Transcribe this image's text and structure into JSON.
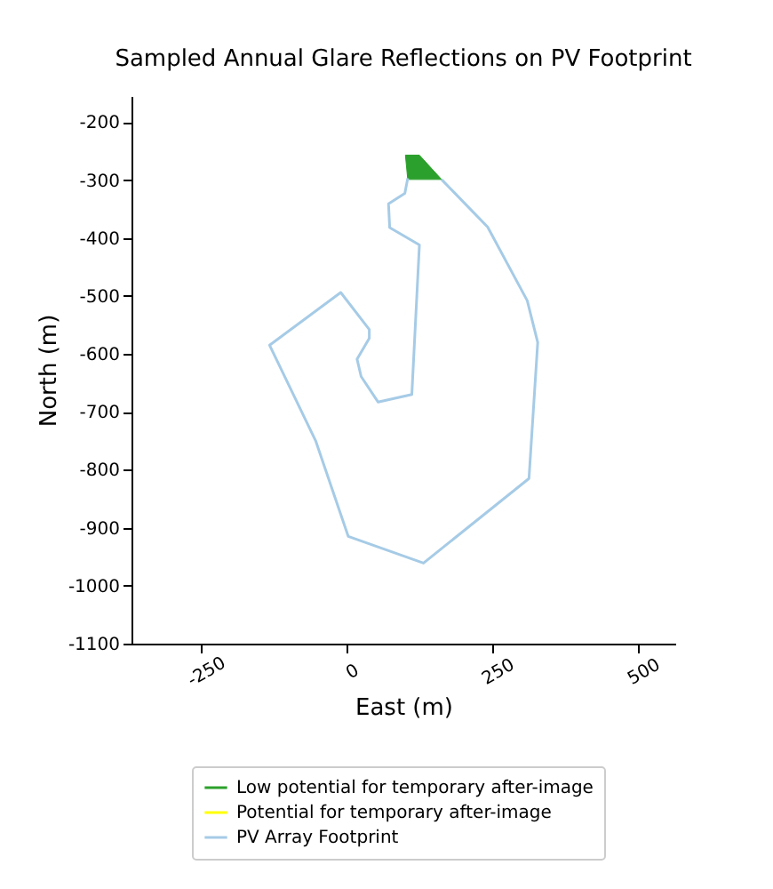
{
  "chart_data": {
    "type": "line",
    "title": "Sampled Annual Glare Reflections on PV Footprint",
    "xlabel": "East (m)",
    "ylabel": "North (m)",
    "xlim": [
      -370,
      563
    ],
    "ylim": [
      -1100,
      -155
    ],
    "xticks": [
      -250,
      0,
      250,
      500
    ],
    "yticks": [
      -1100,
      -1000,
      -900,
      -800,
      -700,
      -600,
      -500,
      -400,
      -300,
      -200
    ],
    "legend": "bottom",
    "grid": false,
    "series": [
      {
        "name": "Low potential for temporary after-image",
        "type": "area",
        "color": "#2ca02c",
        "x": [
          100,
          124,
          162,
          104,
          100
        ],
        "values": [
          -257,
          -257,
          -299,
          -299,
          -257
        ]
      },
      {
        "name": "Potential for temporary after-image",
        "type": "area",
        "color": "#ffff00"
      },
      {
        "name": "PV Array Footprint",
        "color": "#a6cbe6",
        "x": [
          104,
          99,
          71,
          73,
          124,
          111,
          53,
          24,
          17,
          38,
          38,
          -11,
          -133,
          -54,
          2,
          131,
          312,
          327,
          309,
          241,
          162
        ],
        "values": [
          -297,
          -323,
          -341,
          -382,
          -412,
          -670,
          -683,
          -639,
          -609,
          -573,
          -558,
          -494,
          -585,
          -750,
          -915,
          -961,
          -815,
          -580,
          -508,
          -381,
          -299
        ]
      }
    ]
  }
}
